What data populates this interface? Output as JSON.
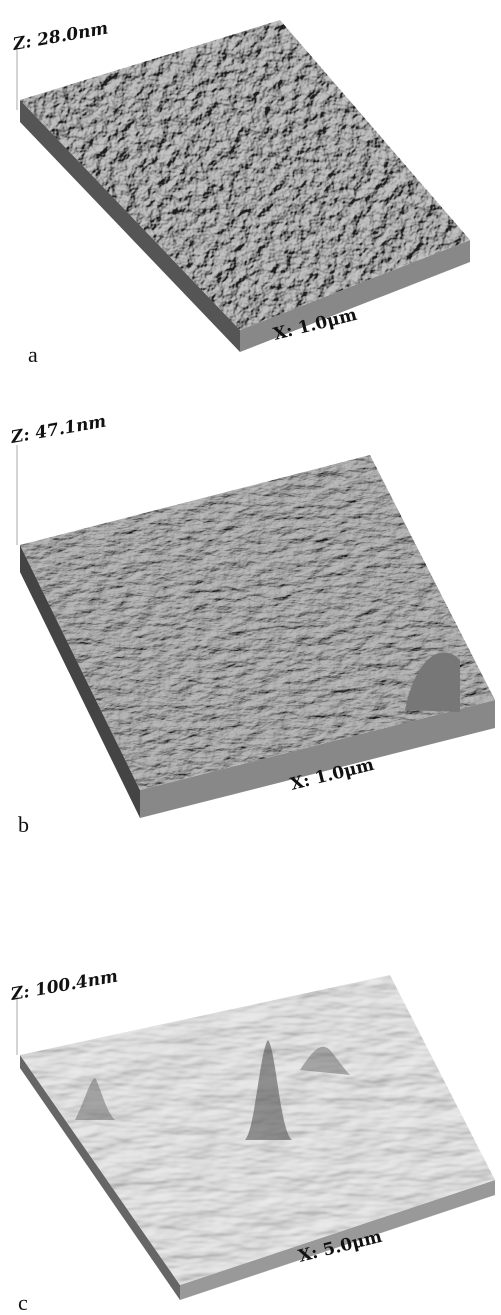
{
  "panels": [
    {
      "z_label": "Z: 28.0nm",
      "x_label": "X: 1.0μm",
      "letter": "a"
    },
    {
      "z_label": "Z: 47.1nm",
      "x_label": "X: 1.0μm",
      "letter": "b"
    },
    {
      "z_label": "Z: 100.4nm",
      "x_label": "X: 5.0μm",
      "letter": "c"
    }
  ]
}
